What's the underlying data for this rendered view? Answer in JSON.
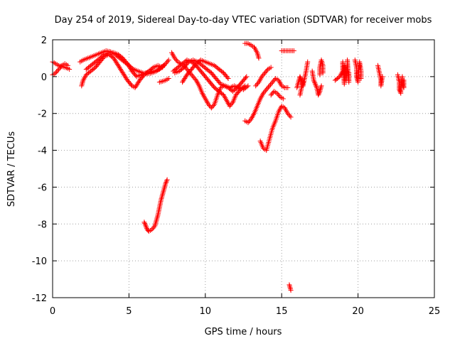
{
  "chart_data": {
    "type": "scatter",
    "title": "Day 254 of 2019, Sidereal Day-to-day VTEC variation (SDTVAR) for receiver mobs",
    "xlabel": "GPS time / hours",
    "ylabel": "SDTVAR / TECUs",
    "xlim": [
      0,
      25
    ],
    "ylim": [
      -12,
      2
    ],
    "xticks": [
      0,
      5,
      10,
      15,
      20,
      25
    ],
    "yticks": [
      -12,
      -10,
      -8,
      -6,
      -4,
      -2,
      0,
      2
    ],
    "grid": true,
    "marker": "+",
    "color": "#ff0000",
    "series": [
      {
        "name": "SDTVAR",
        "segments": [
          [
            [
              0.0,
              0.8
            ],
            [
              0.2,
              0.7
            ],
            [
              0.4,
              0.6
            ],
            [
              0.6,
              0.55
            ],
            [
              0.8,
              0.5
            ],
            [
              1.0,
              0.45
            ],
            [
              1.1,
              0.4
            ]
          ],
          [
            [
              0.0,
              0.1
            ],
            [
              0.2,
              0.2
            ],
            [
              0.4,
              0.4
            ],
            [
              0.6,
              0.6
            ],
            [
              0.8,
              0.7
            ],
            [
              1.0,
              0.6
            ]
          ],
          [
            [
              1.8,
              0.8
            ],
            [
              2.0,
              0.9
            ],
            [
              2.3,
              1.0
            ],
            [
              2.6,
              1.1
            ],
            [
              2.9,
              1.2
            ],
            [
              3.2,
              1.3
            ],
            [
              3.5,
              1.4
            ],
            [
              3.8,
              1.35
            ],
            [
              4.1,
              1.2
            ],
            [
              4.4,
              1.0
            ],
            [
              4.7,
              0.8
            ],
            [
              5.0,
              0.6
            ],
            [
              5.3,
              0.4
            ],
            [
              5.6,
              0.3
            ],
            [
              5.9,
              0.2
            ],
            [
              6.2,
              0.15
            ],
            [
              6.5,
              0.2
            ],
            [
              6.8,
              0.3
            ],
            [
              7.1,
              0.5
            ],
            [
              7.4,
              0.7
            ],
            [
              7.6,
              0.9
            ]
          ],
          [
            [
              1.9,
              -0.5
            ],
            [
              2.0,
              -0.2
            ],
            [
              2.2,
              0.1
            ],
            [
              2.5,
              0.3
            ],
            [
              2.8,
              0.5
            ],
            [
              3.1,
              0.8
            ],
            [
              3.4,
              1.1
            ],
            [
              3.7,
              1.2
            ],
            [
              4.0,
              1.0
            ],
            [
              4.3,
              0.6
            ],
            [
              4.6,
              0.2
            ],
            [
              4.9,
              -0.2
            ],
            [
              5.2,
              -0.5
            ],
            [
              5.4,
              -0.6
            ],
            [
              5.7,
              -0.2
            ],
            [
              6.0,
              0.1
            ],
            [
              6.3,
              0.3
            ],
            [
              6.6,
              0.5
            ],
            [
              6.9,
              0.6
            ],
            [
              7.2,
              0.5
            ]
          ],
          [
            [
              2.2,
              0.4
            ],
            [
              2.5,
              0.6
            ],
            [
              2.8,
              0.8
            ],
            [
              3.1,
              1.0
            ],
            [
              3.4,
              1.2
            ],
            [
              3.7,
              1.3
            ],
            [
              4.0,
              1.3
            ],
            [
              4.3,
              1.2
            ],
            [
              4.6,
              1.0
            ],
            [
              4.9,
              0.7
            ],
            [
              5.2,
              0.3
            ],
            [
              5.5,
              0.0
            ],
            [
              5.8,
              0.1
            ],
            [
              6.1,
              0.2
            ],
            [
              6.4,
              0.25
            ],
            [
              6.7,
              0.3
            ],
            [
              7.0,
              0.4
            ],
            [
              7.3,
              0.6
            ]
          ],
          [
            [
              7.0,
              -0.3
            ],
            [
              7.2,
              -0.25
            ],
            [
              7.4,
              -0.2
            ],
            [
              7.6,
              -0.1
            ]
          ],
          [
            [
              6.0,
              -7.9
            ],
            [
              6.1,
              -8.1
            ],
            [
              6.2,
              -8.3
            ],
            [
              6.3,
              -8.4
            ],
            [
              6.5,
              -8.3
            ],
            [
              6.7,
              -8.1
            ],
            [
              6.8,
              -7.8
            ],
            [
              6.9,
              -7.5
            ],
            [
              7.0,
              -7.1
            ],
            [
              7.1,
              -6.7
            ],
            [
              7.2,
              -6.4
            ],
            [
              7.3,
              -6.1
            ],
            [
              7.4,
              -5.8
            ],
            [
              7.5,
              -5.6
            ]
          ],
          [
            [
              7.8,
              1.3
            ],
            [
              8.0,
              1.0
            ],
            [
              8.2,
              0.8
            ],
            [
              8.4,
              0.7
            ],
            [
              8.6,
              0.6
            ],
            [
              8.8,
              0.4
            ],
            [
              9.0,
              0.2
            ],
            [
              9.2,
              0.0
            ],
            [
              9.4,
              -0.2
            ],
            [
              9.6,
              -0.5
            ],
            [
              9.8,
              -0.9
            ],
            [
              10.0,
              -1.2
            ],
            [
              10.2,
              -1.5
            ],
            [
              10.4,
              -1.7
            ],
            [
              10.6,
              -1.5
            ],
            [
              10.8,
              -1.0
            ],
            [
              11.0,
              -0.6
            ],
            [
              11.2,
              -0.5
            ],
            [
              11.5,
              -0.6
            ],
            [
              11.8,
              -0.8
            ],
            [
              12.1,
              -0.6
            ],
            [
              12.4,
              -0.3
            ],
            [
              12.7,
              0.0
            ]
          ],
          [
            [
              7.9,
              0.3
            ],
            [
              8.2,
              0.5
            ],
            [
              8.5,
              0.7
            ],
            [
              8.8,
              0.9
            ],
            [
              9.1,
              0.8
            ],
            [
              9.4,
              0.6
            ],
            [
              9.7,
              0.3
            ],
            [
              10.0,
              0.0
            ],
            [
              10.3,
              -0.3
            ],
            [
              10.6,
              -0.6
            ],
            [
              10.9,
              -0.8
            ],
            [
              11.2,
              -1.0
            ],
            [
              11.4,
              -1.3
            ],
            [
              11.6,
              -1.6
            ],
            [
              11.8,
              -1.4
            ],
            [
              12.0,
              -1.0
            ],
            [
              12.3,
              -0.7
            ],
            [
              12.6,
              -0.5
            ]
          ],
          [
            [
              8.0,
              0.2
            ],
            [
              8.3,
              0.3
            ],
            [
              8.6,
              0.5
            ],
            [
              8.9,
              0.8
            ],
            [
              9.2,
              0.9
            ],
            [
              9.5,
              0.8
            ],
            [
              9.8,
              0.6
            ],
            [
              10.1,
              0.4
            ],
            [
              10.4,
              0.2
            ],
            [
              10.7,
              -0.1
            ],
            [
              11.0,
              -0.4
            ],
            [
              11.3,
              -0.5
            ],
            [
              11.6,
              -0.6
            ],
            [
              11.9,
              -0.5
            ],
            [
              12.2,
              -0.6
            ],
            [
              12.5,
              -0.7
            ],
            [
              12.8,
              -0.5
            ]
          ],
          [
            [
              8.5,
              -0.3
            ],
            [
              8.8,
              0.1
            ],
            [
              9.1,
              0.4
            ],
            [
              9.4,
              0.7
            ],
            [
              9.7,
              0.9
            ],
            [
              10.0,
              0.8
            ],
            [
              10.3,
              0.7
            ],
            [
              10.6,
              0.6
            ],
            [
              10.9,
              0.4
            ],
            [
              11.2,
              0.2
            ],
            [
              11.5,
              -0.1
            ]
          ],
          [
            [
              12.6,
              -2.4
            ],
            [
              12.8,
              -2.5
            ],
            [
              13.0,
              -2.3
            ],
            [
              13.2,
              -2.0
            ],
            [
              13.4,
              -1.6
            ],
            [
              13.6,
              -1.2
            ],
            [
              13.8,
              -0.9
            ],
            [
              14.0,
              -0.7
            ],
            [
              14.2,
              -0.5
            ],
            [
              14.4,
              -0.3
            ],
            [
              14.6,
              -0.1
            ],
            [
              14.8,
              -0.2
            ],
            [
              15.0,
              -0.5
            ],
            [
              15.2,
              -0.6
            ],
            [
              15.4,
              -0.6
            ]
          ],
          [
            [
              12.6,
              1.8
            ],
            [
              12.8,
              1.8
            ],
            [
              13.0,
              1.7
            ],
            [
              13.2,
              1.6
            ],
            [
              13.4,
              1.3
            ],
            [
              13.5,
              1.0
            ]
          ],
          [
            [
              13.6,
              -3.5
            ],
            [
              13.8,
              -3.9
            ],
            [
              14.0,
              -4.0
            ],
            [
              14.2,
              -3.4
            ],
            [
              14.4,
              -2.8
            ],
            [
              14.6,
              -2.4
            ],
            [
              14.8,
              -1.9
            ],
            [
              15.0,
              -1.6
            ],
            [
              15.2,
              -1.7
            ],
            [
              15.4,
              -2.0
            ],
            [
              15.6,
              -2.2
            ]
          ],
          [
            [
              13.3,
              -0.5
            ],
            [
              13.5,
              -0.3
            ],
            [
              13.7,
              0.0
            ],
            [
              13.9,
              0.2
            ],
            [
              14.1,
              0.4
            ],
            [
              14.3,
              0.5
            ]
          ],
          [
            [
              14.3,
              -1.0
            ],
            [
              14.5,
              -0.8
            ],
            [
              14.7,
              -0.9
            ],
            [
              14.9,
              -1.1
            ],
            [
              15.1,
              -1.2
            ]
          ],
          [
            [
              15.0,
              1.4
            ],
            [
              15.2,
              1.4
            ],
            [
              15.4,
              1.4
            ],
            [
              15.6,
              1.4
            ],
            [
              15.8,
              1.4
            ]
          ],
          [
            [
              15.5,
              -11.3
            ],
            [
              15.6,
              -11.6
            ]
          ],
          [
            [
              16.0,
              -0.6
            ],
            [
              16.1,
              -0.3
            ],
            [
              16.2,
              0.0
            ],
            [
              16.3,
              -0.2
            ],
            [
              16.4,
              -0.5
            ],
            [
              16.5,
              -0.1
            ],
            [
              16.6,
              0.3
            ],
            [
              16.7,
              0.8
            ]
          ],
          [
            [
              16.2,
              -1.0
            ],
            [
              16.3,
              -0.6
            ],
            [
              16.4,
              -0.3
            ]
          ],
          [
            [
              17.0,
              0.3
            ],
            [
              17.1,
              -0.2
            ],
            [
              17.2,
              -0.4
            ],
            [
              17.3,
              -0.6
            ],
            [
              17.4,
              -1.0
            ],
            [
              17.5,
              -0.8
            ],
            [
              17.6,
              -0.5
            ]
          ],
          [
            [
              17.5,
              0.1
            ],
            [
              17.5,
              0.5
            ],
            [
              17.6,
              0.9
            ],
            [
              17.7,
              0.6
            ],
            [
              17.7,
              0.2
            ]
          ],
          [
            [
              18.5,
              -0.2
            ],
            [
              18.8,
              0.0
            ],
            [
              19.0,
              0.3
            ],
            [
              19.0,
              0.8
            ],
            [
              19.1,
              -0.4
            ],
            [
              19.1,
              0.6
            ],
            [
              19.2,
              0.1
            ],
            [
              19.2,
              -0.2
            ],
            [
              19.3,
              0.4
            ],
            [
              19.3,
              0.9
            ],
            [
              19.4,
              -0.3
            ],
            [
              19.4,
              0.2
            ]
          ],
          [
            [
              19.8,
              0.9
            ],
            [
              19.9,
              0.5
            ],
            [
              19.9,
              0.0
            ],
            [
              20.0,
              -0.3
            ],
            [
              20.0,
              0.2
            ],
            [
              20.1,
              0.6
            ],
            [
              20.1,
              0.8
            ],
            [
              20.2,
              0.3
            ],
            [
              20.2,
              -0.1
            ]
          ],
          [
            [
              21.3,
              0.6
            ],
            [
              21.4,
              0.2
            ],
            [
              21.5,
              -0.2
            ],
            [
              21.5,
              -0.5
            ],
            [
              21.6,
              0.0
            ]
          ],
          [
            [
              22.6,
              0.1
            ],
            [
              22.7,
              -0.3
            ],
            [
              22.7,
              -0.7
            ],
            [
              22.8,
              -0.9
            ],
            [
              22.8,
              -0.5
            ],
            [
              22.9,
              0.0
            ],
            [
              22.9,
              -0.4
            ],
            [
              23.0,
              -0.6
            ],
            [
              23.0,
              -0.2
            ]
          ]
        ]
      }
    ]
  }
}
